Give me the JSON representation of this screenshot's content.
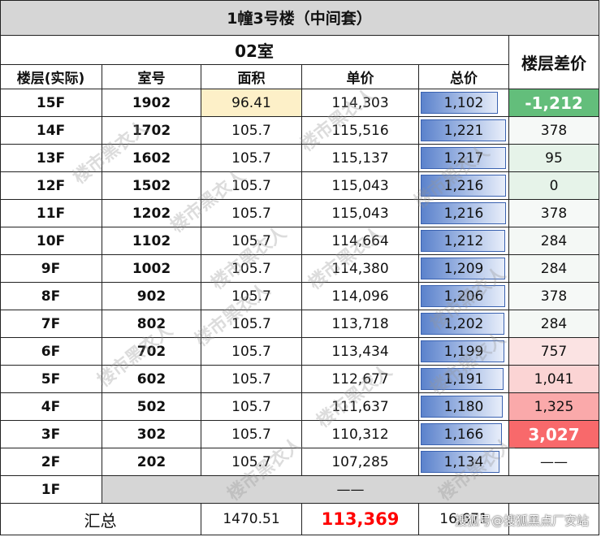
{
  "title": "1幢3号楼（中间套）",
  "room_header": "02室",
  "diff_header": "楼层差价",
  "columns": [
    "楼层(实际)",
    "室号",
    "面积",
    "单价",
    "总价"
  ],
  "rows": [
    {
      "floor": "15F",
      "room": "1902",
      "area": "96.41",
      "unit_price": "114,303",
      "total": "1,102",
      "total_value": 1102,
      "diff": "-1,212"
    },
    {
      "floor": "14F",
      "room": "1702",
      "area": "105.7",
      "unit_price": "115,516",
      "total": "1,221",
      "total_value": 1221,
      "diff": "378"
    },
    {
      "floor": "13F",
      "room": "1602",
      "area": "105.7",
      "unit_price": "115,137",
      "total": "1,217",
      "total_value": 1217,
      "diff": "95"
    },
    {
      "floor": "12F",
      "room": "1502",
      "area": "105.7",
      "unit_price": "115,043",
      "total": "1,216",
      "total_value": 1216,
      "diff": "0"
    },
    {
      "floor": "11F",
      "room": "1202",
      "area": "105.7",
      "unit_price": "115,043",
      "total": "1,216",
      "total_value": 1216,
      "diff": "378"
    },
    {
      "floor": "10F",
      "room": "1102",
      "area": "105.7",
      "unit_price": "114,664",
      "total": "1,212",
      "total_value": 1212,
      "diff": "284"
    },
    {
      "floor": "9F",
      "room": "1002",
      "area": "105.7",
      "unit_price": "114,380",
      "total": "1,209",
      "total_value": 1209,
      "diff": "284"
    },
    {
      "floor": "8F",
      "room": "902",
      "area": "105.7",
      "unit_price": "114,096",
      "total": "1,206",
      "total_value": 1206,
      "diff": "378"
    },
    {
      "floor": "7F",
      "room": "802",
      "area": "105.7",
      "unit_price": "113,718",
      "total": "1,202",
      "total_value": 1202,
      "diff": "284"
    },
    {
      "floor": "6F",
      "room": "702",
      "area": "105.7",
      "unit_price": "113,434",
      "total": "1,199",
      "total_value": 1199,
      "diff": "757"
    },
    {
      "floor": "5F",
      "room": "602",
      "area": "105.7",
      "unit_price": "112,677",
      "total": "1,191",
      "total_value": 1191,
      "diff": "1,041"
    },
    {
      "floor": "4F",
      "room": "502",
      "area": "105.7",
      "unit_price": "111,637",
      "total": "1,180",
      "total_value": 1180,
      "diff": "1,325"
    },
    {
      "floor": "3F",
      "room": "302",
      "area": "105.7",
      "unit_price": "110,312",
      "total": "1,166",
      "total_value": 1166,
      "diff": "3,027"
    },
    {
      "floor": "2F",
      "room": "202",
      "area": "105.7",
      "unit_price": "107,285",
      "total": "1,134",
      "total_value": 1134,
      "diff": "——"
    }
  ],
  "floor1": {
    "floor": "1F",
    "merged": "——"
  },
  "summary": {
    "label": "汇总",
    "area": "1470.51",
    "unit_price": "113,369",
    "total": "16,671"
  },
  "colors": {
    "grid": "#222222",
    "area_highlight": "#fdf0c8",
    "bar_blue": "#5b82cc",
    "diff_green_strong": "#63be7b",
    "diff_green_light": "#e2f2e6",
    "diff_red_strong": "#f8696b",
    "diff_red_light": "#fcdcdc",
    "summary_red": "#ff0000",
    "floor1_grey": "#d6d6d6"
  },
  "watermark": "楼市黑衣人",
  "footer_watermark": "搜狐号@搜狐黑点厂安站"
}
